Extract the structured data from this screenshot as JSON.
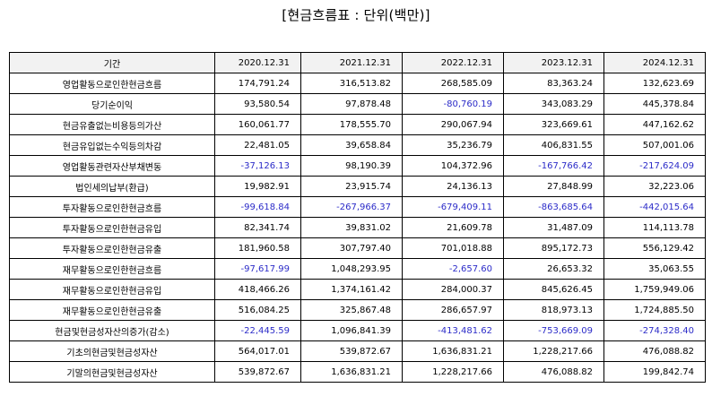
{
  "title": "[현금흐름표 : 단위(백만)]",
  "table": {
    "headers": [
      "기간",
      "2020.12.31",
      "2021.12.31",
      "2022.12.31",
      "2023.12.31",
      "2024.12.31"
    ],
    "rows": [
      {
        "label": "영업활동으로인한현금흐름",
        "values": [
          "174,791.24",
          "316,513.82",
          "268,585.09",
          "83,363.24",
          "132,623.69"
        ]
      },
      {
        "label": "당기순이익",
        "values": [
          "93,580.54",
          "97,878.48",
          "-80,760.19",
          "343,083.29",
          "445,378.84"
        ]
      },
      {
        "label": "현금유출없는비용등의가산",
        "values": [
          "160,061.77",
          "178,555.70",
          "290,067.94",
          "323,669.61",
          "447,162.62"
        ]
      },
      {
        "label": "현금유입없는수익등의차감",
        "values": [
          "22,481.05",
          "39,658.84",
          "35,236.79",
          "406,831.55",
          "507,001.06"
        ]
      },
      {
        "label": "영업활동관련자산부채변동",
        "values": [
          "-37,126.13",
          "98,190.39",
          "104,372.96",
          "-167,766.42",
          "-217,624.09"
        ]
      },
      {
        "label": "법인세의납부(환급)",
        "values": [
          "19,982.91",
          "23,915.74",
          "24,136.13",
          "27,848.99",
          "32,223.06"
        ]
      },
      {
        "label": "투자활동으로인한현금흐름",
        "values": [
          "-99,618.84",
          "-267,966.37",
          "-679,409.11",
          "-863,685.64",
          "-442,015.64"
        ]
      },
      {
        "label": "투자활동으로인한현금유입",
        "values": [
          "82,341.74",
          "39,831.02",
          "21,609.78",
          "31,487.09",
          "114,113.78"
        ]
      },
      {
        "label": "투자활동으로인한현금유출",
        "values": [
          "181,960.58",
          "307,797.40",
          "701,018.88",
          "895,172.73",
          "556,129.42"
        ]
      },
      {
        "label": "재무활동으로인한현금흐름",
        "values": [
          "-97,617.99",
          "1,048,293.95",
          "-2,657.60",
          "26,653.32",
          "35,063.55"
        ]
      },
      {
        "label": "재무활동으로인한현금유입",
        "values": [
          "418,466.26",
          "1,374,161.42",
          "284,000.37",
          "845,626.45",
          "1,759,949.06"
        ]
      },
      {
        "label": "재무활동으로인한현금유출",
        "values": [
          "516,084.25",
          "325,867.48",
          "286,657.97",
          "818,973.13",
          "1,724,885.50"
        ]
      },
      {
        "label": "현금및현금성자산의증가(감소)",
        "values": [
          "-22,445.59",
          "1,096,841.39",
          "-413,481.62",
          "-753,669.09",
          "-274,328.40"
        ]
      },
      {
        "label": "기초의현금및현금성자산",
        "values": [
          "564,017.01",
          "539,872.67",
          "1,636,831.21",
          "1,228,217.66",
          "476,088.82"
        ]
      },
      {
        "label": "기말의현금및현금성자산",
        "values": [
          "539,872.67",
          "1,636,831.21",
          "1,228,217.66",
          "476,088.82",
          "199,842.74"
        ]
      }
    ]
  },
  "colors": {
    "header_bg": "#f2f2f2",
    "negative_text": "#2b2bc8",
    "border": "#000000"
  }
}
